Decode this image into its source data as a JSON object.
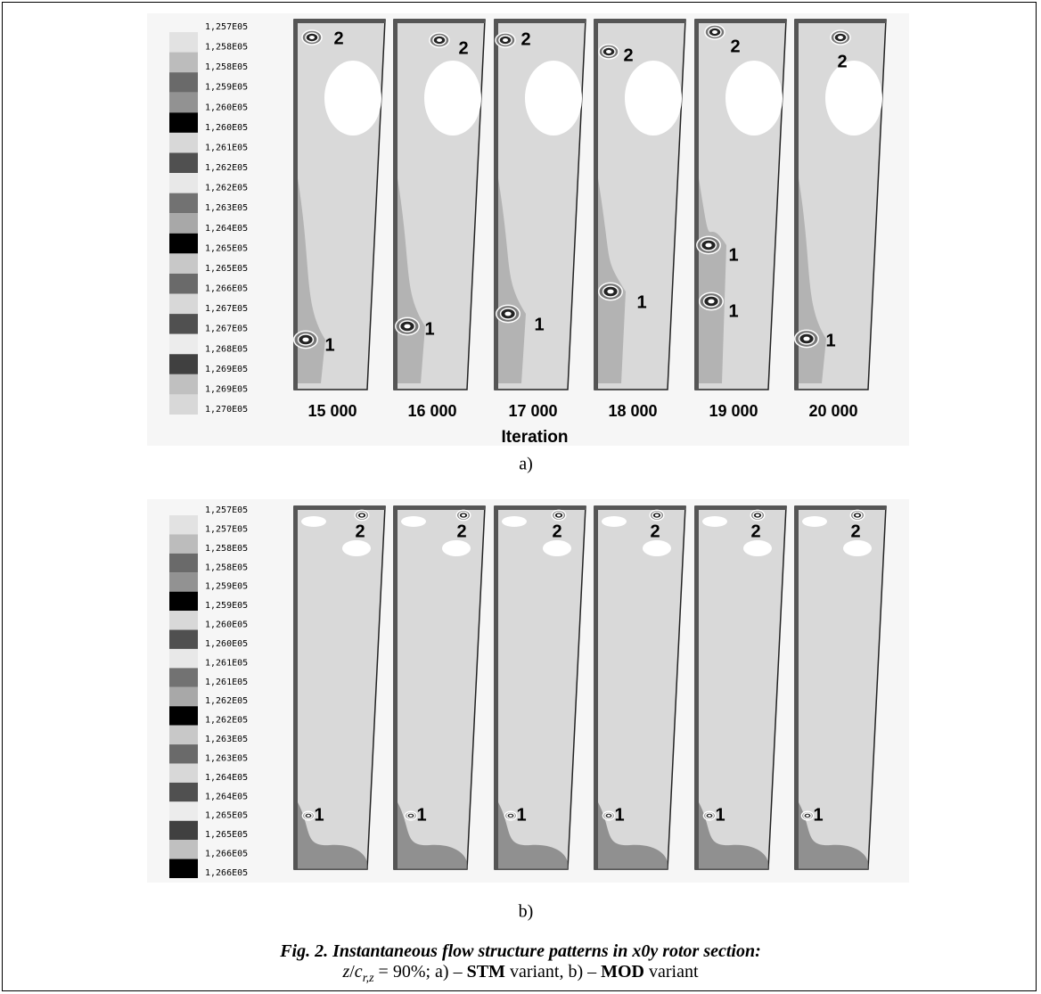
{
  "panel_a": {
    "legend": [
      "1,257E05",
      "1,258E05",
      "1,258E05",
      "1,259E05",
      "1,260E05",
      "1,260E05",
      "1,261E05",
      "1,262E05",
      "1,262E05",
      "1,263E05",
      "1,264E05",
      "1,265E05",
      "1,265E05",
      "1,266E05",
      "1,267E05",
      "1,267E05",
      "1,268E05",
      "1,269E05",
      "1,269E05",
      "1,270E05"
    ],
    "legend_colors": [
      "#e2e2e2",
      "#bcbcbc",
      "#6a6a6a",
      "#929292",
      "#000000",
      "#d8d8d8",
      "#505050",
      "#e8e8e8",
      "#727272",
      "#a8a8a8",
      "#000000",
      "#c8c8c8",
      "#6a6a6a",
      "#d8d8d8",
      "#505050",
      "#ececec",
      "#404040",
      "#c0c0c0",
      "#d8d8d8"
    ],
    "plots": [
      {
        "iteration": "15 000",
        "markers": [
          "2",
          "1"
        ]
      },
      {
        "iteration": "16 000",
        "markers": [
          "2",
          "1"
        ]
      },
      {
        "iteration": "17 000",
        "markers": [
          "2",
          "1"
        ]
      },
      {
        "iteration": "18 000",
        "markers": [
          "2",
          "1"
        ]
      },
      {
        "iteration": "19 000",
        "markers": [
          "2",
          "1",
          "1"
        ]
      },
      {
        "iteration": "20 000",
        "markers": [
          "2",
          "1"
        ]
      }
    ],
    "axis_label": "Iteration",
    "label": "a)"
  },
  "panel_b": {
    "legend": [
      "1,257E05",
      "1,257E05",
      "1,258E05",
      "1,258E05",
      "1,259E05",
      "1,259E05",
      "1,260E05",
      "1,260E05",
      "1,261E05",
      "1,261E05",
      "1,262E05",
      "1,262E05",
      "1,263E05",
      "1,263E05",
      "1,264E05",
      "1,264E05",
      "1,265E05",
      "1,265E05",
      "1,266E05",
      "1,266E05"
    ],
    "legend_colors": [
      "#e2e2e2",
      "#bcbcbc",
      "#6a6a6a",
      "#929292",
      "#000000",
      "#d8d8d8",
      "#505050",
      "#e8e8e8",
      "#727272",
      "#a8a8a8",
      "#000000",
      "#c8c8c8",
      "#6a6a6a",
      "#d8d8d8",
      "#505050",
      "#ececec",
      "#404040",
      "#c0c0c0",
      "#000000"
    ],
    "plots": [
      {
        "markers": [
          "2",
          "1"
        ]
      },
      {
        "markers": [
          "2",
          "1"
        ]
      },
      {
        "markers": [
          "2",
          "1"
        ]
      },
      {
        "markers": [
          "2",
          "1"
        ]
      },
      {
        "markers": [
          "2",
          "1"
        ]
      },
      {
        "markers": [
          "2",
          "1"
        ]
      }
    ],
    "label": "b)"
  },
  "caption": {
    "title": "Fig. 2. Instantaneous flow structure patterns in x0y rotor section:",
    "line2": [
      "z",
      "/",
      "c",
      "r,z",
      " = 90%; a) – ",
      "STM",
      " variant, b) – ",
      "MOD",
      " variant"
    ]
  }
}
